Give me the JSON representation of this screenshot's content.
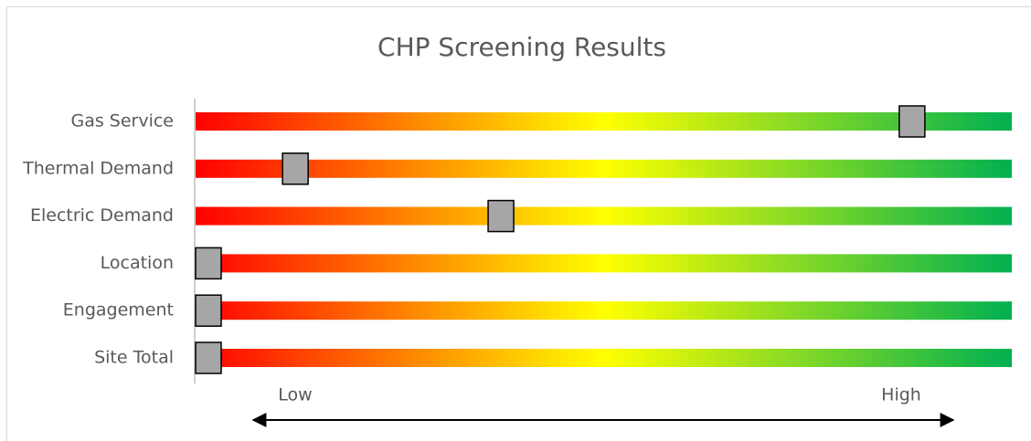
{
  "chart_data": {
    "type": "bar",
    "title": "CHP Screening Results",
    "categories": [
      "Gas Service",
      "Thermal Demand",
      "Electric Demand",
      "Location",
      "Engagement",
      "Site Total"
    ],
    "values": [
      89,
      11,
      37,
      0,
      0,
      0
    ],
    "xlim": [
      0,
      100
    ],
    "colors": [
      "#ff0000",
      "#ffff00",
      "#00b050"
    ],
    "marker_color": "#a6a6a6",
    "low_label": "Low",
    "high_label": "High"
  }
}
